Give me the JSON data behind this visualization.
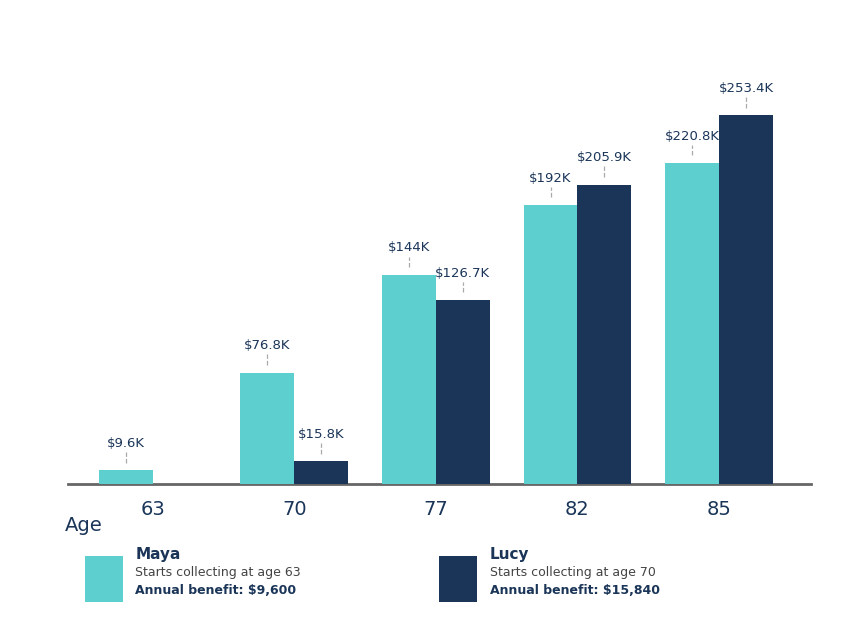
{
  "ages": [
    63,
    70,
    77,
    82,
    85
  ],
  "maya_values": [
    9600,
    76800,
    144000,
    192000,
    220800
  ],
  "lucy_values": [
    0,
    15800,
    126700,
    205900,
    253400
  ],
  "maya_labels": [
    "$9.6K",
    "$76.8K",
    "$144K",
    "$192K",
    "$220.8K"
  ],
  "lucy_labels": [
    "",
    "$15.8K",
    "$126.7K",
    "$205.9K",
    "$253.4K"
  ],
  "maya_color": "#5dcfcf",
  "lucy_color": "#1a3558",
  "background_color": "#ffffff",
  "label_color": "#1a3558",
  "bar_width": 0.38,
  "age_label": "Age",
  "legend_maya_name": "Maya",
  "legend_maya_sub": "Starts collecting at age 63",
  "legend_maya_benefit": "Annual benefit: $9,600",
  "legend_lucy_name": "Lucy",
  "legend_lucy_sub": "Starts collecting at age 70",
  "legend_lucy_benefit": "Annual benefit: $15,840",
  "dashed_line_color": "#aaaaaa",
  "ylim_max": 290000,
  "label_fontsize": 9.5,
  "tick_fontsize": 14,
  "age_label_fontsize": 14
}
